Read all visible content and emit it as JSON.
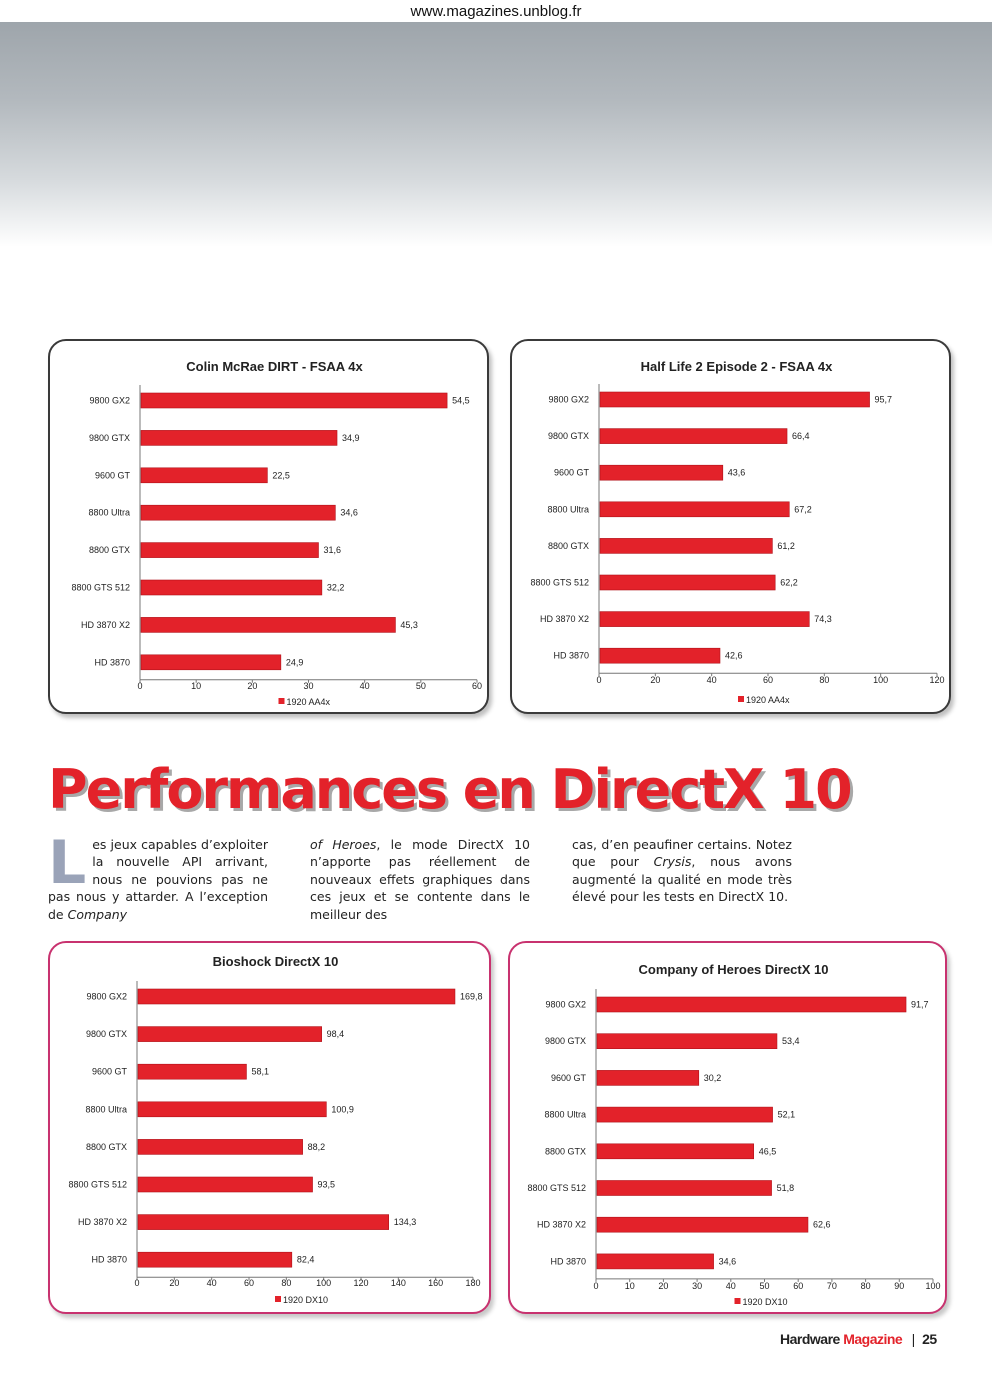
{
  "header": {
    "site_url": "www.magazines.unblog.fr"
  },
  "article": {
    "headline": "Performances en DirectX 10",
    "dropcap": "L",
    "col1_text": "es jeux capables d’exploiter la nouvelle API arrivant, nous ne pouvions pas ne pas nous y attarder. A l’exception de ",
    "col1_italic": "Company",
    "col2_italic": "of Heroes",
    "col2_text": ", le mode DirectX 10 n’apporte pas réellement de nouveaux effets graphiques dans ces jeux et se contente dans le meilleur des",
    "col3_text_a": "cas, d’en peaufiner certains. Notez que pour ",
    "col3_italic": "Crysis",
    "col3_text_b": ", nous avons augmenté la qualité en mode très élevé pour les tests en DirectX 10."
  },
  "footer": {
    "brand_a": "Hardware",
    "brand_b": "Magazine",
    "separator": "|",
    "page_number": "25"
  },
  "colors": {
    "bar": "#e3222a",
    "bar_border": "#b0121a",
    "headline": "#e3222a",
    "panel_border_gray": "#3a3a3a",
    "panel_border_pink": "#c8326f"
  },
  "chart_data": [
    {
      "type": "bar",
      "orientation": "horizontal",
      "title": "Colin McRae DIRT - FSAA 4x",
      "categories": [
        "9800 GX2",
        "9800 GTX",
        "9600 GT",
        "8800 Ultra",
        "8800 GTX",
        "8800 GTS 512",
        "HD 3870 X2",
        "HD 3870"
      ],
      "series": [
        {
          "name": "1920 AA4x",
          "values": [
            54.5,
            34.9,
            22.5,
            34.6,
            31.6,
            32.2,
            45.3,
            24.9
          ],
          "value_labels": [
            "54,5",
            "34,9",
            "22,5",
            "34,6",
            "31,6",
            "32,2",
            "45,3",
            "24,9"
          ]
        }
      ],
      "xlim": [
        0,
        60
      ],
      "xticks": [
        0,
        10,
        20,
        30,
        40,
        50,
        60
      ],
      "grid": false,
      "legend": "bottom"
    },
    {
      "type": "bar",
      "orientation": "horizontal",
      "title": "Half Life 2 Episode 2 - FSAA 4x",
      "categories": [
        "9800 GX2",
        "9800 GTX",
        "9600 GT",
        "8800 Ultra",
        "8800 GTX",
        "8800 GTS 512",
        "HD 3870 X2",
        "HD 3870"
      ],
      "series": [
        {
          "name": "1920 AA4x",
          "values": [
            95.7,
            66.4,
            43.6,
            67.2,
            61.2,
            62.2,
            74.3,
            42.6
          ],
          "value_labels": [
            "95,7",
            "66,4",
            "43,6",
            "67,2",
            "61,2",
            "62,2",
            "74,3",
            "42,6"
          ]
        }
      ],
      "xlim": [
        0,
        120
      ],
      "xticks": [
        0,
        20,
        40,
        60,
        80,
        100,
        120
      ],
      "grid": false,
      "legend": "bottom"
    },
    {
      "type": "bar",
      "orientation": "horizontal",
      "title": "Bioshock DirectX 10",
      "categories": [
        "9800 GX2",
        "9800 GTX",
        "9600 GT",
        "8800 Ultra",
        "8800 GTX",
        "8800 GTS 512",
        "HD 3870 X2",
        "HD 3870"
      ],
      "series": [
        {
          "name": "1920 DX10",
          "values": [
            169.8,
            98.4,
            58.1,
            100.9,
            88.2,
            93.5,
            134.3,
            82.4
          ],
          "value_labels": [
            "169,8",
            "98,4",
            "58,1",
            "100,9",
            "88,2",
            "93,5",
            "134,3",
            "82,4"
          ]
        }
      ],
      "xlim": [
        0,
        180
      ],
      "xticks": [
        0,
        20,
        40,
        60,
        80,
        100,
        120,
        140,
        160,
        180
      ],
      "grid": false,
      "legend": "bottom"
    },
    {
      "type": "bar",
      "orientation": "horizontal",
      "title": "Company of Heroes DirectX 10",
      "categories": [
        "9800 GX2",
        "9800 GTX",
        "9600 GT",
        "8800 Ultra",
        "8800 GTX",
        "8800 GTS 512",
        "HD 3870 X2",
        "HD 3870"
      ],
      "series": [
        {
          "name": "1920 DX10",
          "values": [
            91.7,
            53.4,
            30.2,
            52.1,
            46.5,
            51.8,
            62.6,
            34.6
          ],
          "value_labels": [
            "91,7",
            "53,4",
            "30,2",
            "52,1",
            "46,5",
            "51,8",
            "62,6",
            "34,6"
          ]
        }
      ],
      "xlim": [
        0,
        100
      ],
      "xticks": [
        0,
        10,
        20,
        30,
        40,
        50,
        60,
        70,
        80,
        90,
        100
      ],
      "grid": false,
      "legend": "bottom"
    }
  ]
}
